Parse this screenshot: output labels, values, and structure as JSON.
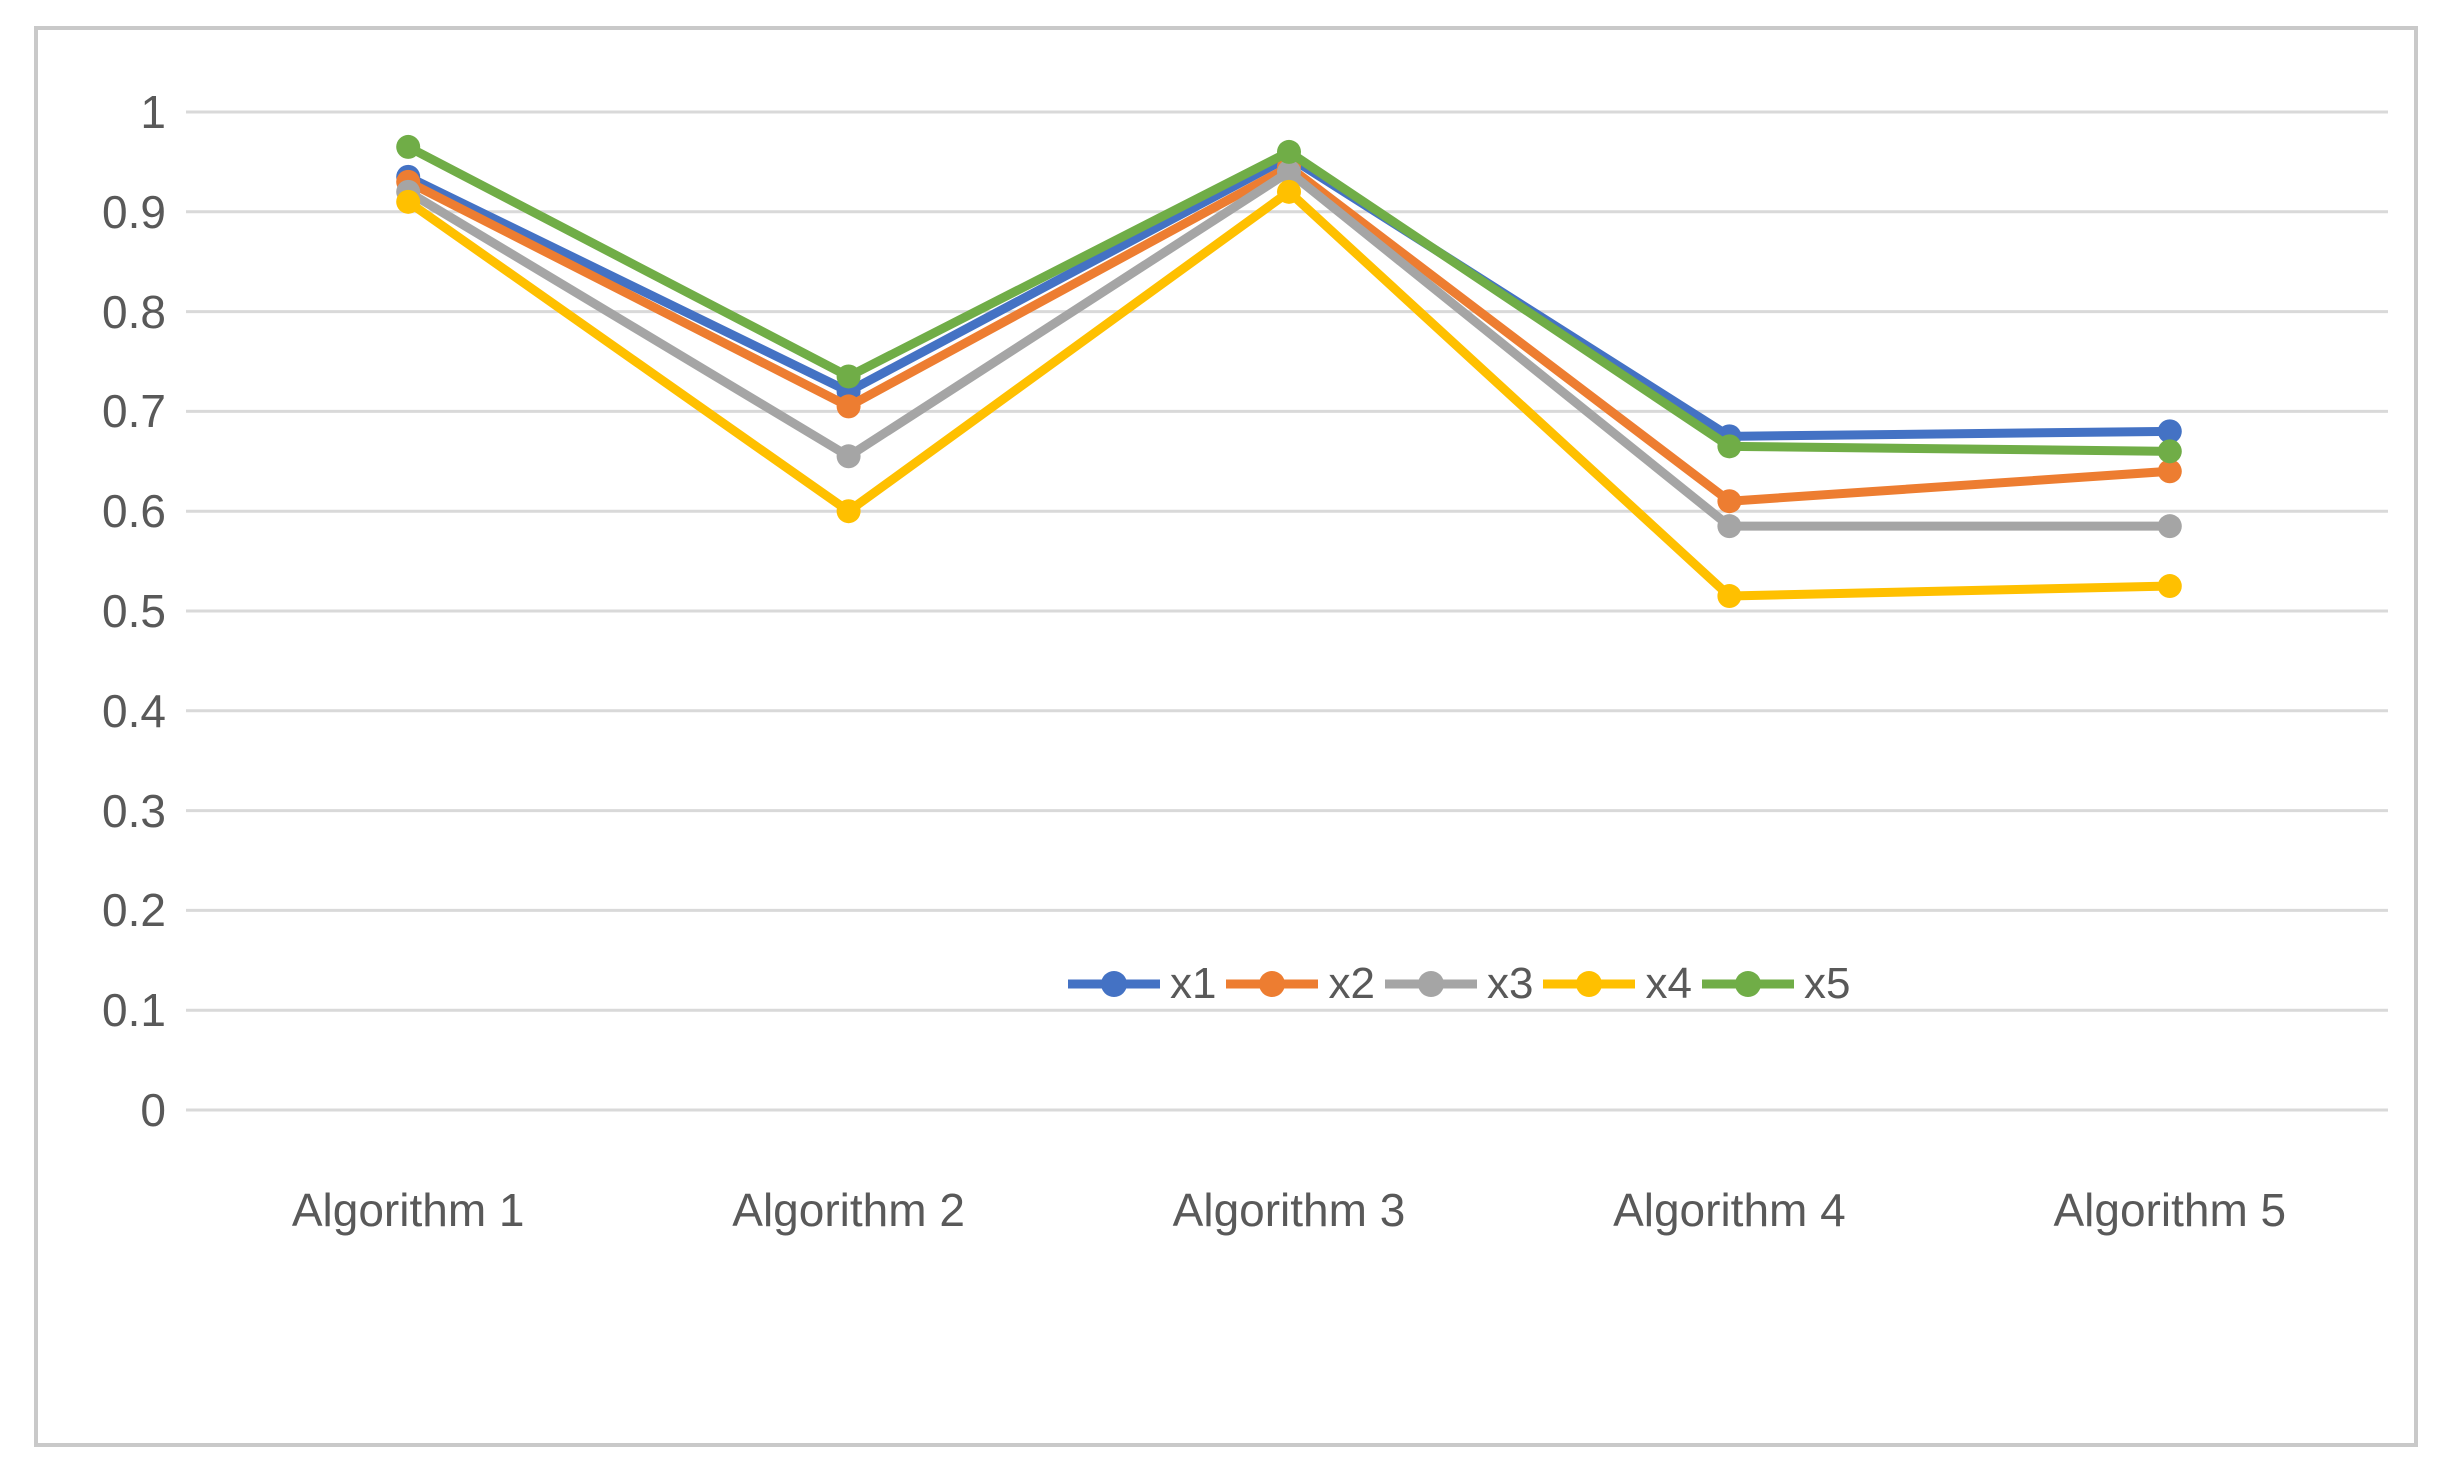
{
  "chart_data": {
    "type": "line",
    "title": "",
    "xlabel": "",
    "ylabel": "",
    "categories": [
      "Algorithm 1",
      "Algorithm 2",
      "Algorithm 3",
      "Algorithm 4",
      "Algorithm 5"
    ],
    "series": [
      {
        "name": "x1",
        "color": "#4472C4",
        "values": [
          0.935,
          0.72,
          0.955,
          0.675,
          0.68
        ]
      },
      {
        "name": "x2",
        "color": "#ED7D31",
        "values": [
          0.93,
          0.705,
          0.945,
          0.61,
          0.64
        ]
      },
      {
        "name": "x3",
        "color": "#A5A5A5",
        "values": [
          0.92,
          0.655,
          0.94,
          0.585,
          0.585
        ]
      },
      {
        "name": "x4",
        "color": "#FFC000",
        "values": [
          0.91,
          0.6,
          0.92,
          0.515,
          0.525
        ]
      },
      {
        "name": "x5",
        "color": "#70AD47",
        "values": [
          0.965,
          0.735,
          0.96,
          0.665,
          0.66
        ]
      }
    ],
    "y_ticks": [
      {
        "label": "1",
        "value": 1.0
      },
      {
        "label": "0.9",
        "value": 0.9
      },
      {
        "label": "0.8",
        "value": 0.8
      },
      {
        "label": "0.7",
        "value": 0.7
      },
      {
        "label": "0.6",
        "value": 0.6
      },
      {
        "label": "0.5",
        "value": 0.5
      },
      {
        "label": "0.4",
        "value": 0.4
      },
      {
        "label": "0.3",
        "value": 0.3
      },
      {
        "label": "0.2",
        "value": 0.2
      },
      {
        "label": "0.1",
        "value": 0.1
      },
      {
        "label": "0",
        "value": 0.0
      }
    ],
    "ylim": [
      0,
      1
    ],
    "grid": true,
    "gridline_color": "#d9d9d9",
    "tick_text_color": "#595959",
    "legend_position": "inside-bottom-right",
    "legend_entries": [
      "x1",
      "x2",
      "x3",
      "x4",
      "x5"
    ],
    "marker": "circle"
  }
}
